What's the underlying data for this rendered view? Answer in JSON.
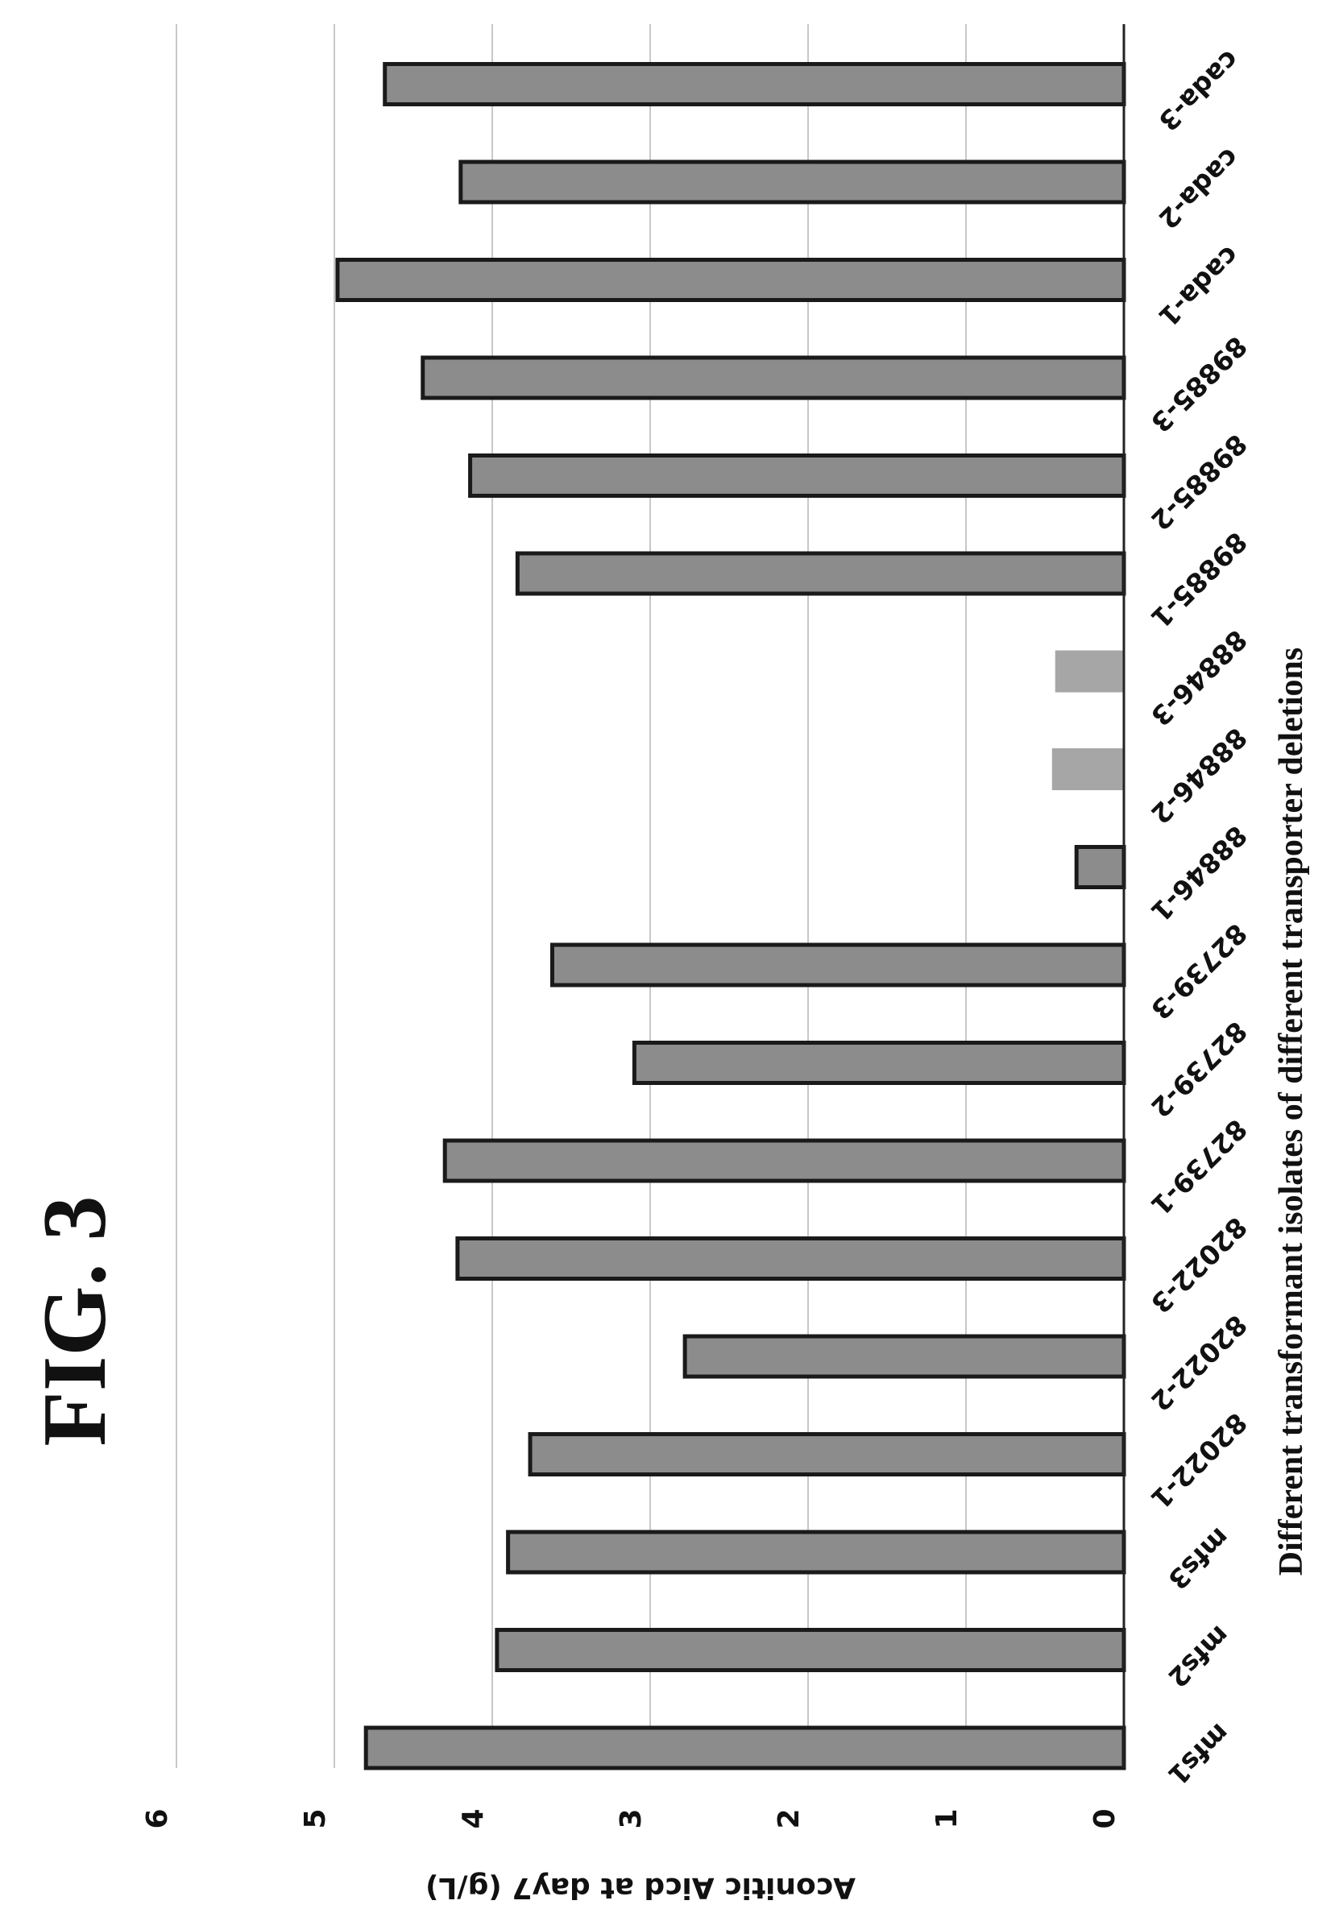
{
  "figure_title": "FIG. 3",
  "chart_data": {
    "type": "bar",
    "orientation": "horizontal-rotated",
    "title": "",
    "xlabel": "Different transformant isolates of different transporter deletions",
    "ylabel": "Aconitic Aicd at day7 (g/L)",
    "ylim": [
      0,
      6
    ],
    "yticks": [
      "0",
      "1",
      "2",
      "3",
      "4",
      "5",
      "6"
    ],
    "grid": true,
    "categories": [
      "mfs1",
      "mfs2",
      "mfs3",
      "82022-1",
      "82022-2",
      "82022-3",
      "82739-1",
      "82739-2",
      "82739-3",
      "88846-1",
      "88846-2",
      "88846-3",
      "89885-1",
      "89885-2",
      "89885-3",
      "cada-1",
      "cada-2",
      "cada-3"
    ],
    "values": [
      4.8,
      3.97,
      3.9,
      3.76,
      2.78,
      4.22,
      4.3,
      3.1,
      3.62,
      0.3,
      0.45,
      0.43,
      3.84,
      4.14,
      4.44,
      4.98,
      4.2,
      4.68
    ],
    "colors": {
      "bar_fill": "#8c8c8c",
      "bar_stroke": "#1a1a1a",
      "bar_fill_light": "#a6a6a6",
      "grid": "#c8c8c8"
    }
  }
}
